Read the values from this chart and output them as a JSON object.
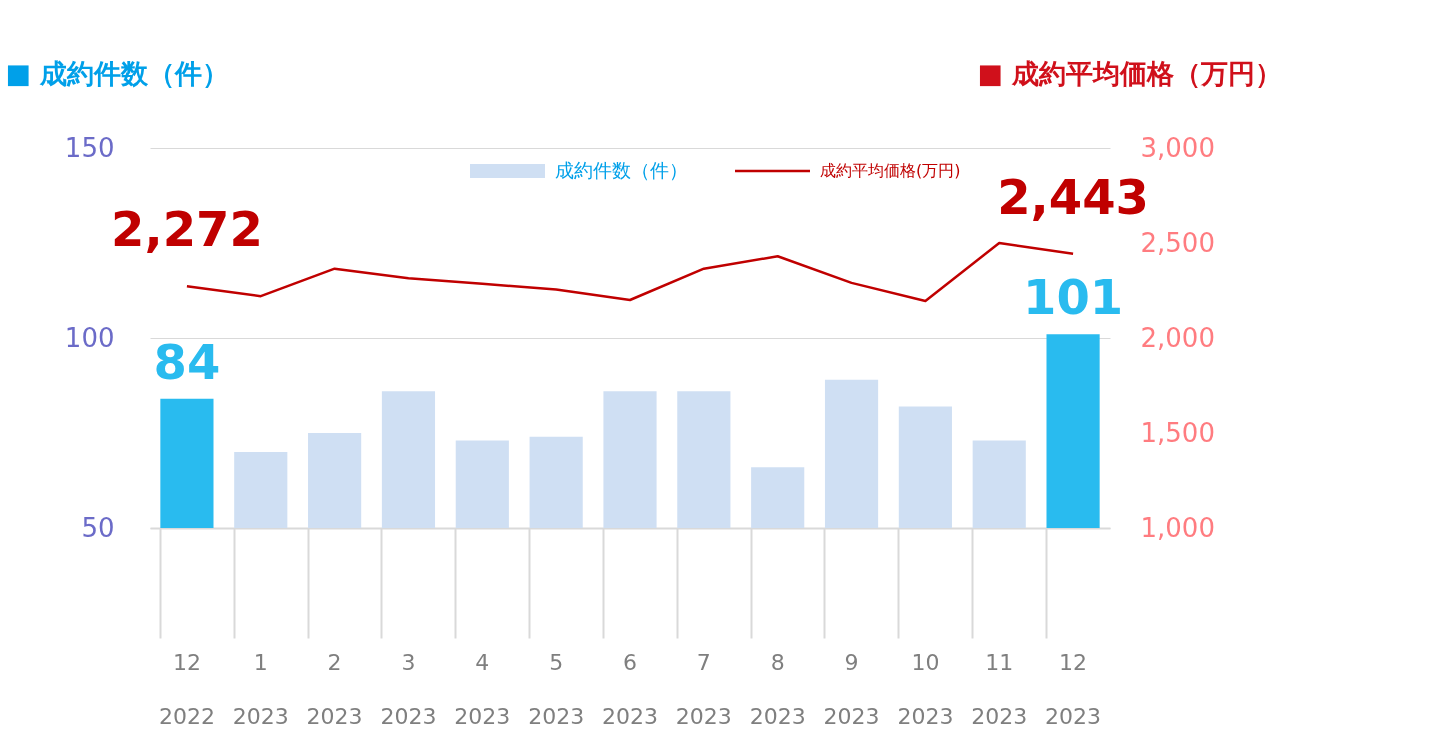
{
  "chart_data": {
    "type": "bar",
    "ylabel": "■ 成約件数（件）",
    "y2label": "■ 成約平均価格（万円）",
    "categories": [
      "12\n2022",
      "1\n2023",
      "2\n2023",
      "3\n2023",
      "4\n2023",
      "5\n2023",
      "6\n2023",
      "7\n2023",
      "8\n2023",
      "9\n2023",
      "10\n2023",
      "11\n2023",
      "12\n2023"
    ],
    "series": [
      {
        "name": "成約件数（件）",
        "color": "#cfdff3",
        "colors": [
          "#29bbef",
          "#cfdff3",
          "#cfdff3",
          "#cfdff3",
          "#cfdff3",
          "#cfdff3",
          "#cfdff3",
          "#cfdff3",
          "#cfdff3",
          "#cfdff3",
          "#cfdff3",
          "#cfdff3",
          "#29bbef"
        ],
        "values": [
          84,
          70,
          75,
          86,
          73,
          74,
          86,
          86,
          66,
          89,
          82,
          73,
          101
        ],
        "value_labels": [
          "84",
          null,
          null,
          null,
          null,
          null,
          null,
          null,
          null,
          null,
          null,
          null,
          "101"
        ]
      },
      {
        "name": "成約平均価格(万円)",
        "type": "line",
        "axis": "y2",
        "color": "#c00000",
        "values": [
          2272,
          2220,
          2365,
          2315,
          2285,
          2255,
          2200,
          2365,
          2430,
          2290,
          2195,
          2500,
          2443
        ],
        "value_labels": [
          "2,272",
          null,
          null,
          null,
          null,
          null,
          null,
          null,
          null,
          null,
          null,
          null,
          "2,443"
        ]
      }
    ],
    "ylim": [
      50,
      150
    ],
    "yticks": [
      50,
      100,
      150
    ],
    "y2lim": [
      1000,
      3000
    ],
    "y2ticks": [
      {
        "value": 1000,
        "label": "1,000"
      },
      {
        "value": 1500,
        "label": "1,500"
      },
      {
        "value": 2000,
        "label": "2,000"
      },
      {
        "value": 2500,
        "label": "2,500"
      },
      {
        "value": 3000,
        "label": "3,000"
      }
    ],
    "grid": "y",
    "legend": "top",
    "marker": "none",
    "line_style": "solid"
  }
}
